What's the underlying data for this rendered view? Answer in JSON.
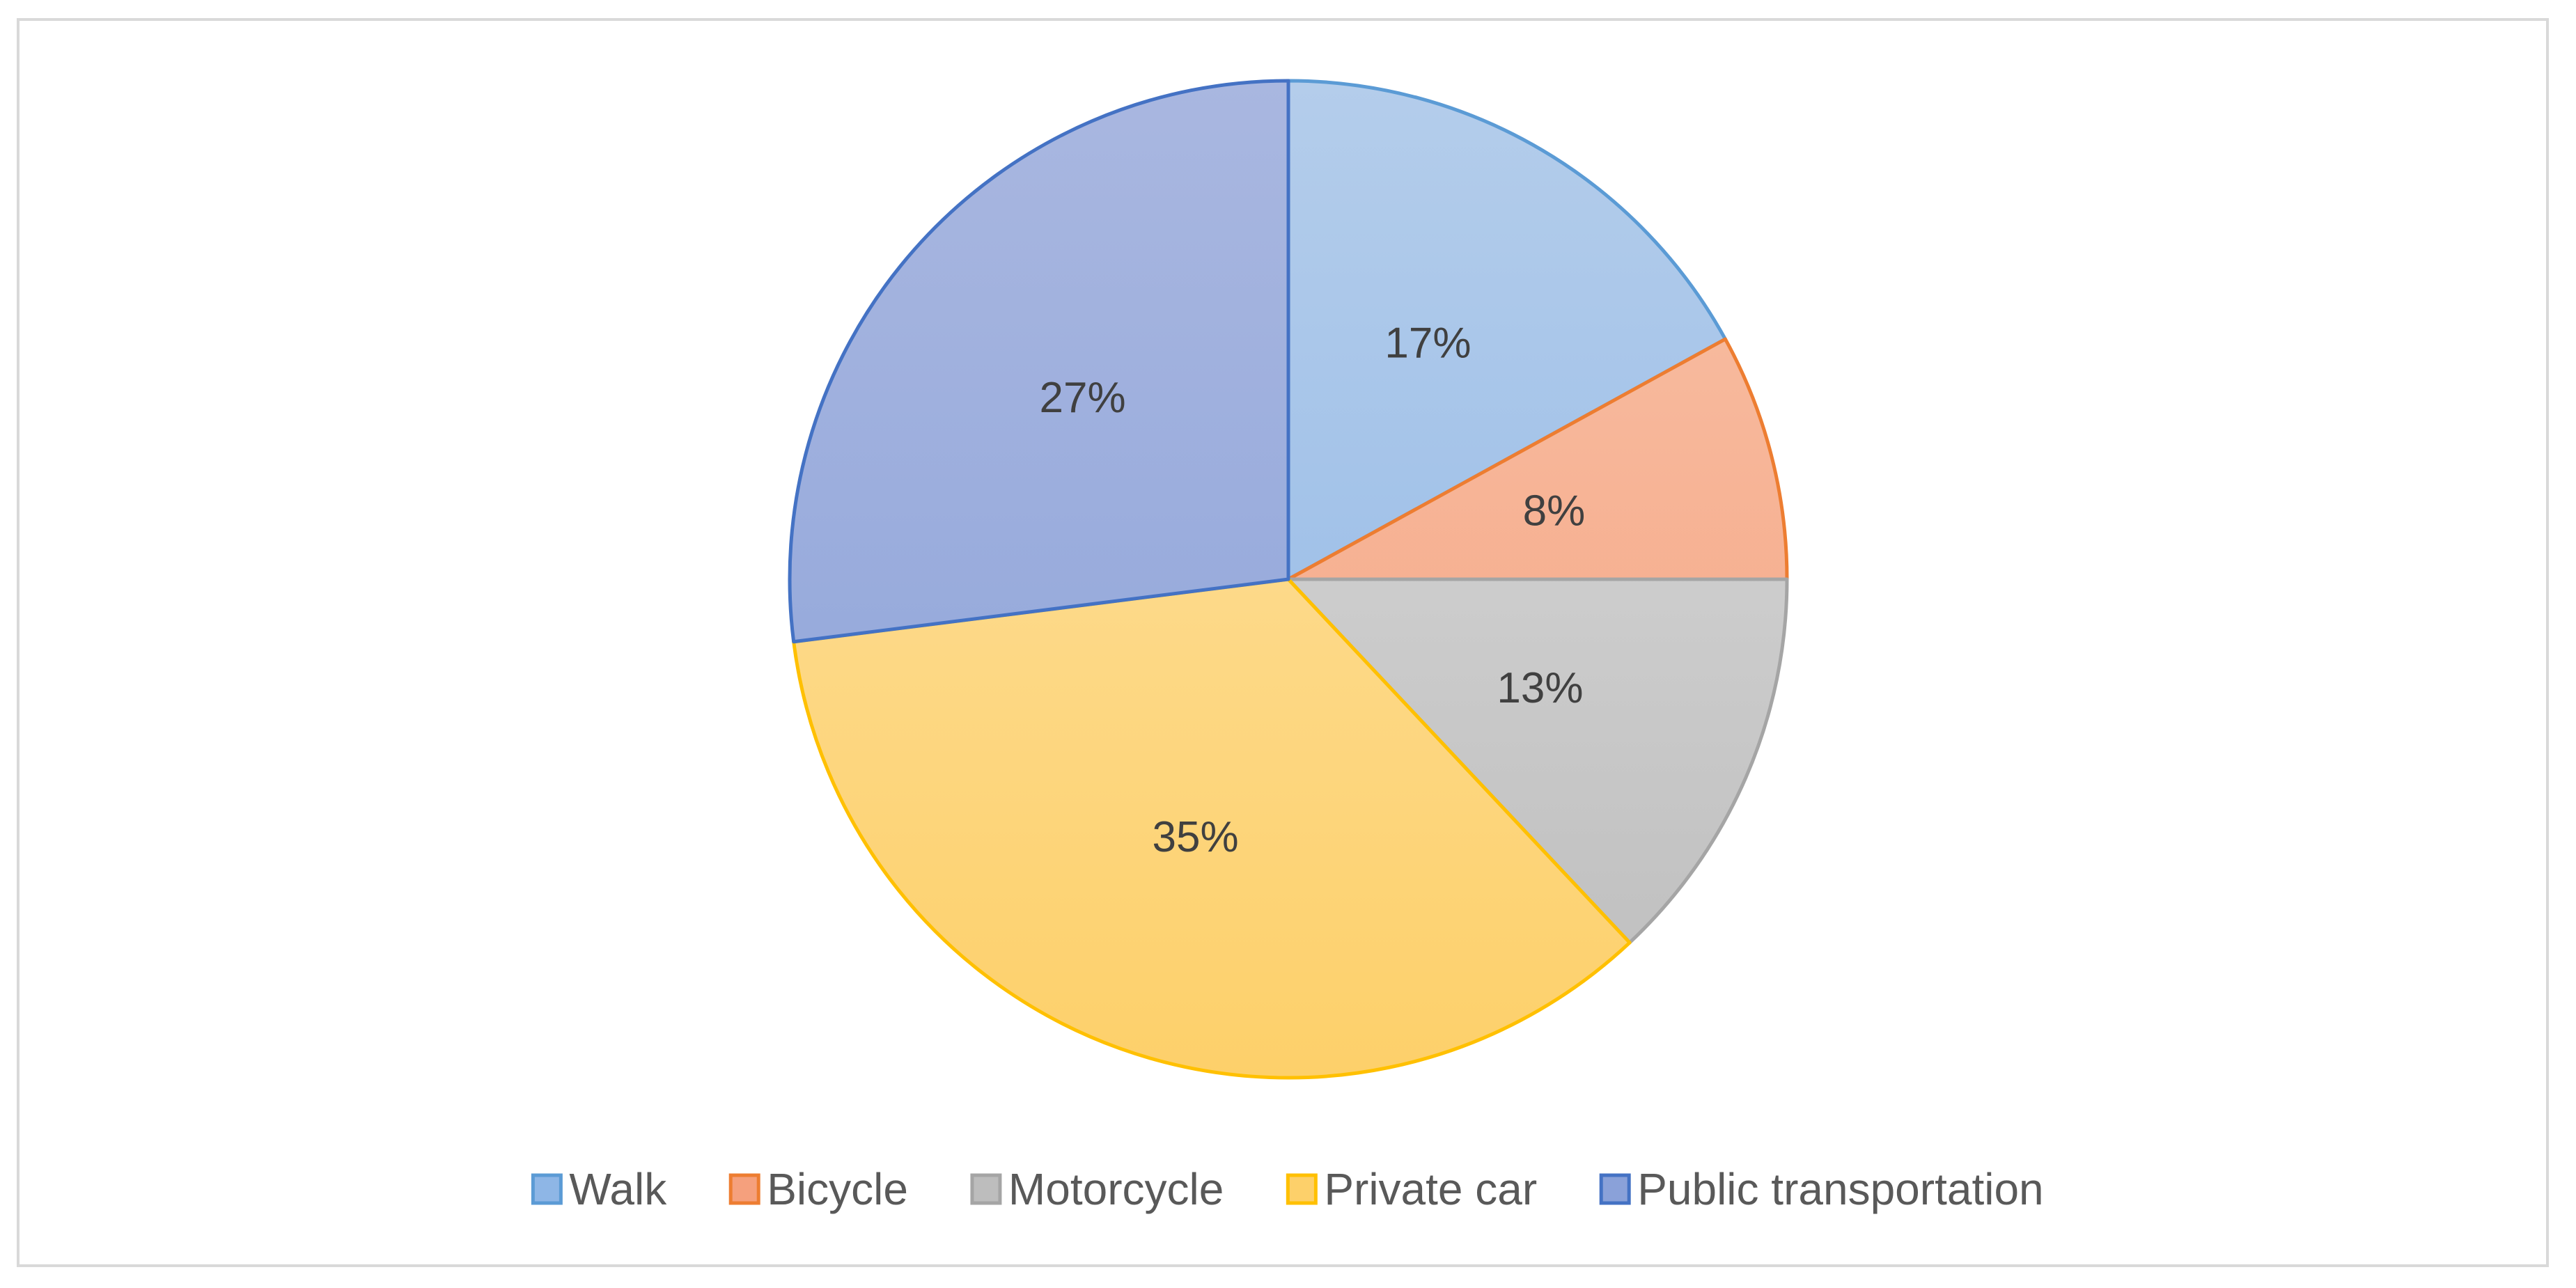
{
  "chart_data": {
    "type": "pie",
    "title": "",
    "slices": [
      {
        "name": "Walk",
        "value": 17,
        "label": "17%",
        "color_top": "#b4cdeb",
        "color_bottom": "#8eb6e6",
        "stroke": "#5b9bd5"
      },
      {
        "name": "Bicycle",
        "value": 8,
        "label": "8%",
        "color_top": "#f8c2a8",
        "color_bottom": "#f5a07d",
        "stroke": "#ed7d31"
      },
      {
        "name": "Motorcycle",
        "value": 13,
        "label": "13%",
        "color_top": "#dcdcdc",
        "color_bottom": "#bdbdbd",
        "stroke": "#a5a5a5"
      },
      {
        "name": "Private car",
        "value": 35,
        "label": "35%",
        "color_top": "#fde3a9",
        "color_bottom": "#fdd06a",
        "stroke": "#ffc000"
      },
      {
        "name": "Public transportation",
        "value": 27,
        "label": "27%",
        "color_top": "#a9b7e0",
        "color_bottom": "#8aa1d9",
        "stroke": "#4472c4"
      }
    ],
    "start_angle_deg": 0,
    "direction": "clockwise",
    "legend_position": "bottom"
  }
}
